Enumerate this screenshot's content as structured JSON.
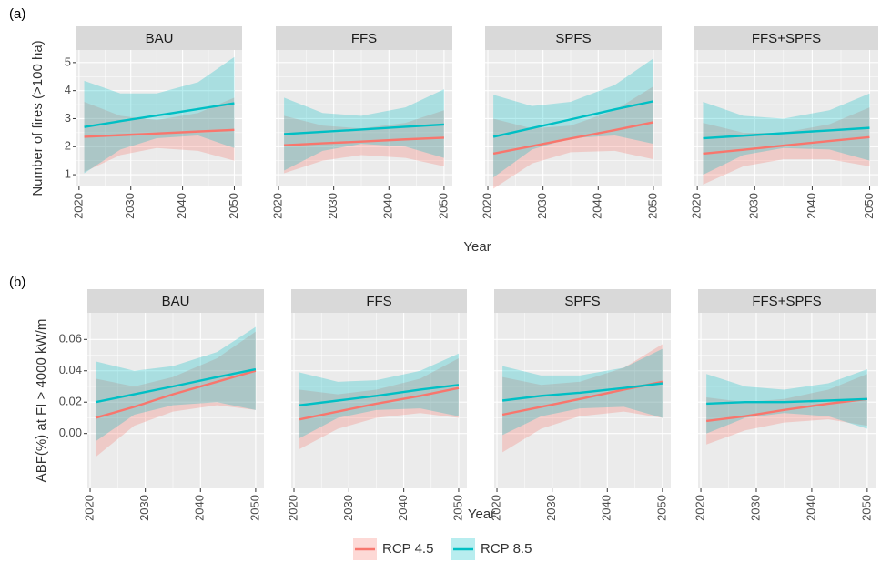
{
  "legend": {
    "series": [
      {
        "name": "RCP 4.5",
        "color": "#F8766D"
      },
      {
        "name": "RCP 8.5",
        "color": "#00BFC4"
      }
    ]
  },
  "chart_data": [
    {
      "type": "line",
      "label": "(a)",
      "ylabel": "Number of fires (>100 ha)",
      "xlabel": "Year",
      "x": [
        2021,
        2028,
        2035,
        2043,
        2050
      ],
      "xlim": [
        2019.5,
        2051.5
      ],
      "xticks": [
        2020,
        2030,
        2040,
        2050
      ],
      "ylim": [
        0.58,
        5.45
      ],
      "yticks": [
        1,
        2,
        3,
        4,
        5
      ],
      "grid": true,
      "facets": [
        {
          "title": "BAU",
          "series": [
            {
              "values": [
                2.35,
                2.41,
                2.47,
                2.54,
                2.6
              ],
              "lower": [
                1.1,
                1.7,
                1.95,
                1.85,
                1.5
              ],
              "upper": [
                3.6,
                3.1,
                2.95,
                3.2,
                3.75
              ]
            },
            {
              "values": [
                2.7,
                2.91,
                3.11,
                3.34,
                3.55
              ],
              "lower": [
                1.05,
                1.9,
                2.3,
                2.4,
                1.95
              ],
              "upper": [
                4.35,
                3.9,
                3.9,
                4.3,
                5.2
              ]
            }
          ]
        },
        {
          "title": "FFS",
          "series": [
            {
              "values": [
                2.05,
                2.12,
                2.18,
                2.26,
                2.32
              ],
              "lower": [
                1.05,
                1.5,
                1.7,
                1.6,
                1.3
              ],
              "upper": [
                3.1,
                2.75,
                2.65,
                2.85,
                3.3
              ]
            },
            {
              "values": [
                2.45,
                2.53,
                2.61,
                2.71,
                2.79
              ],
              "lower": [
                1.15,
                1.85,
                2.1,
                2.0,
                1.6
              ],
              "upper": [
                3.75,
                3.2,
                3.1,
                3.4,
                4.05
              ]
            }
          ]
        },
        {
          "title": "SPFS",
          "series": [
            {
              "values": [
                1.75,
                2.02,
                2.29,
                2.59,
                2.87
              ],
              "lower": [
                0.5,
                1.4,
                1.8,
                1.85,
                1.55
              ],
              "upper": [
                3.0,
                2.65,
                2.75,
                3.3,
                4.15
              ]
            },
            {
              "values": [
                2.35,
                2.66,
                2.97,
                3.33,
                3.62
              ],
              "lower": [
                0.9,
                1.9,
                2.3,
                2.4,
                2.1
              ],
              "upper": [
                3.85,
                3.45,
                3.6,
                4.2,
                5.15
              ]
            }
          ]
        },
        {
          "title": "FFS+SPFS",
          "series": [
            {
              "values": [
                1.75,
                1.89,
                2.04,
                2.2,
                2.34
              ],
              "lower": [
                0.65,
                1.3,
                1.55,
                1.55,
                1.3
              ],
              "upper": [
                2.85,
                2.5,
                2.5,
                2.8,
                3.4
              ]
            },
            {
              "values": [
                2.3,
                2.39,
                2.48,
                2.58,
                2.67
              ],
              "lower": [
                1.0,
                1.7,
                1.95,
                1.9,
                1.5
              ],
              "upper": [
                3.6,
                3.1,
                3.0,
                3.3,
                3.9
              ]
            }
          ]
        }
      ]
    },
    {
      "type": "line",
      "label": "(b)",
      "ylabel": "ABF(%) at FI > 4000 kW/m",
      "xlabel": "Year",
      "x": [
        2021,
        2028,
        2035,
        2043,
        2050
      ],
      "xlim": [
        2019.5,
        2051.5
      ],
      "xticks": [
        2020,
        2030,
        2040,
        2050
      ],
      "ylim": [
        -0.035,
        0.077
      ],
      "yticks": [
        {
          "value": 0,
          "label": "0.00"
        },
        0.02,
        0.04,
        0.06
      ],
      "grid": true,
      "facets": [
        {
          "title": "BAU",
          "series": [
            {
              "values": [
                0.01,
                0.017,
                0.025,
                0.033,
                0.04
              ],
              "lower": [
                -0.015,
                0.005,
                0.014,
                0.018,
                0.015
              ],
              "upper": [
                0.035,
                0.03,
                0.036,
                0.048,
                0.065
              ]
            },
            {
              "values": [
                0.02,
                0.025,
                0.03,
                0.036,
                0.041
              ],
              "lower": [
                -0.005,
                0.012,
                0.018,
                0.02,
                0.015
              ],
              "upper": [
                0.046,
                0.04,
                0.043,
                0.052,
                0.068
              ]
            }
          ]
        },
        {
          "title": "FFS",
          "series": [
            {
              "values": [
                0.009,
                0.014,
                0.019,
                0.024,
                0.029
              ],
              "lower": [
                -0.01,
                0.003,
                0.01,
                0.013,
                0.01
              ],
              "upper": [
                0.028,
                0.025,
                0.028,
                0.035,
                0.048
              ]
            },
            {
              "values": [
                0.018,
                0.021,
                0.024,
                0.028,
                0.031
              ],
              "lower": [
                -0.003,
                0.01,
                0.015,
                0.016,
                0.011
              ],
              "upper": [
                0.039,
                0.033,
                0.034,
                0.04,
                0.051
              ]
            }
          ]
        },
        {
          "title": "SPFS",
          "series": [
            {
              "values": [
                0.012,
                0.017,
                0.022,
                0.028,
                0.033
              ],
              "lower": [
                -0.012,
                0.003,
                0.011,
                0.014,
                0.01
              ],
              "upper": [
                0.036,
                0.031,
                0.033,
                0.042,
                0.057
              ]
            },
            {
              "values": [
                0.021,
                0.024,
                0.026,
                0.029,
                0.032
              ],
              "lower": [
                -0.001,
                0.011,
                0.016,
                0.017,
                0.01
              ],
              "upper": [
                0.043,
                0.037,
                0.037,
                0.042,
                0.054
              ]
            }
          ]
        },
        {
          "title": "FFS+SPFS",
          "series": [
            {
              "values": [
                0.008,
                0.011,
                0.015,
                0.019,
                0.022
              ],
              "lower": [
                -0.007,
                0.002,
                0.007,
                0.009,
                0.005
              ],
              "upper": [
                0.023,
                0.02,
                0.022,
                0.028,
                0.038
              ]
            },
            {
              "values": [
                0.019,
                0.02,
                0.02,
                0.021,
                0.022
              ],
              "lower": [
                0.0,
                0.01,
                0.013,
                0.011,
                0.003
              ],
              "upper": [
                0.038,
                0.03,
                0.028,
                0.032,
                0.041
              ]
            }
          ]
        }
      ]
    }
  ]
}
